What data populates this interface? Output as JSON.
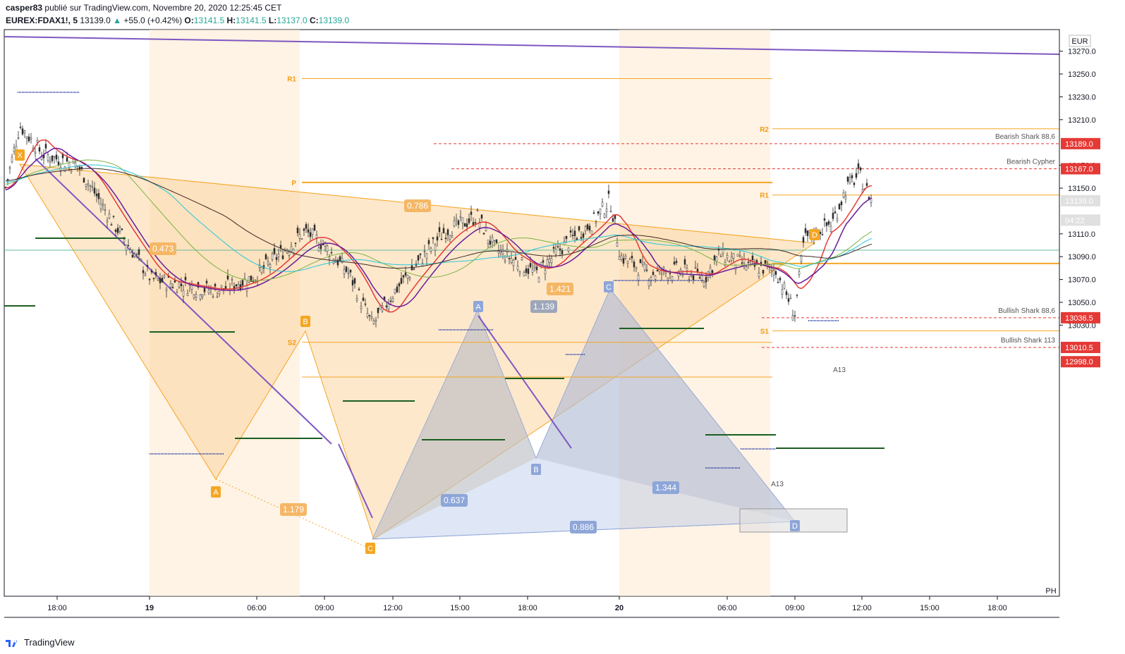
{
  "header": {
    "author": "casper83",
    "published": "publié sur TradingView.com, Novembre 20, 2020 12:25:45 CET",
    "symbol": "EUREX:FDAX1!, 5",
    "last": "13139.0",
    "change": "+55.0 (+0.42%)",
    "o_label": "O:",
    "o_val": "13141.5",
    "h_label": "H:",
    "h_val": "13141.5",
    "l_label": "L:",
    "l_val": "13137.0",
    "c_label": "C:",
    "c_val": "13139.0"
  },
  "footer": {
    "brand": "TradingView"
  },
  "colors": {
    "accent_orange": "#f5a623",
    "bull_blue": "#a4b9e6",
    "trend_purple": "#7e57c2",
    "red_level": "#e53935",
    "current_price_bg": "#e8e8e8"
  },
  "chart_data": {
    "type": "line",
    "title": "",
    "currency": "EUR",
    "y_ticks": [
      "13270.0",
      "13250.0",
      "13230.0",
      "13210.0",
      "13170.0",
      "13150.0",
      "13110.0",
      "13090.0",
      "13070.0",
      "13050.0",
      "13030.0"
    ],
    "x_ticks": [
      {
        "label": "18:00",
        "bold": false
      },
      {
        "label": "19",
        "bold": true
      },
      {
        "label": "06:00",
        "bold": false
      },
      {
        "label": "09:00",
        "bold": false
      },
      {
        "label": "12:00",
        "bold": false
      },
      {
        "label": "15:00",
        "bold": false
      },
      {
        "label": "18:00",
        "bold": false
      },
      {
        "label": "20",
        "bold": true
      },
      {
        "label": "06:00",
        "bold": false
      },
      {
        "label": "09:00",
        "bold": false
      },
      {
        "label": "12:00",
        "bold": false
      },
      {
        "label": "15:00",
        "bold": false
      },
      {
        "label": "18:00",
        "bold": false
      }
    ],
    "price_tags": [
      {
        "label": "13189.0",
        "value": 13189.0,
        "kind": "red"
      },
      {
        "label": "13167.0",
        "value": 13167.0,
        "kind": "red"
      },
      {
        "label": "13139.0",
        "value": 13139.0,
        "kind": "current"
      },
      {
        "label": "04:22",
        "value": 13122.0,
        "kind": "timer"
      },
      {
        "label": "13036.5",
        "value": 13036.5,
        "kind": "red"
      },
      {
        "label": "13010.5",
        "value": 13010.5,
        "kind": "red"
      },
      {
        "label": "12998.0",
        "value": 12998.0,
        "kind": "red"
      }
    ],
    "pattern_labels": [
      {
        "text": "Bearish Shark 88,6",
        "value": 13189.0
      },
      {
        "text": "Bearish Cypher",
        "value": 13167.0
      },
      {
        "text": "Bullish Shark 88,6",
        "value": 13036.5
      },
      {
        "text": "Bullish Shark 113",
        "value": 13010.5
      }
    ],
    "pivots_day1": [
      {
        "label": "R1",
        "value": 13246
      },
      {
        "label": "P",
        "value": 13155
      },
      {
        "label": "S2",
        "value": 13015
      }
    ],
    "pivots_day2": [
      {
        "label": "R2",
        "value": 13202
      },
      {
        "label": "R1",
        "value": 13144
      },
      {
        "label": "P",
        "value": 13084
      },
      {
        "label": "S1",
        "value": 13025
      }
    ],
    "harmonic_points": [
      "X",
      "A",
      "B",
      "C",
      "D",
      "A",
      "B",
      "C",
      "D"
    ],
    "ratios": [
      "0.473",
      "0.786",
      "1.179",
      "1.421",
      "0.637",
      "1.139",
      "0.886",
      "1.344"
    ],
    "candles": [],
    "last_price": 13139.0,
    "ph_label": "PH",
    "a13_labels": [
      "A13",
      "A13"
    ]
  }
}
